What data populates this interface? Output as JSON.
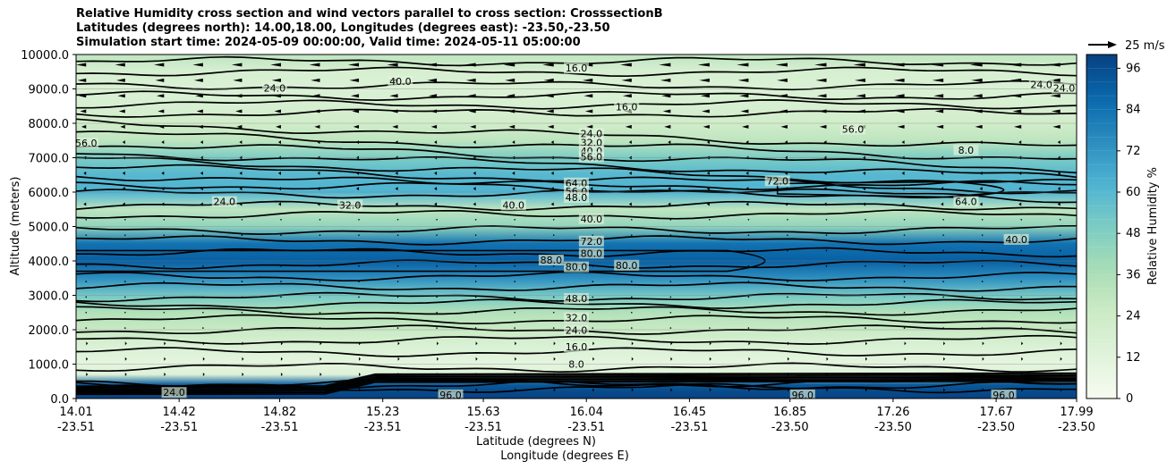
{
  "chart_data": {
    "type": "contour",
    "title_lines": [
      "Relative Humidity cross section and wind vectors parallel to cross section: CrosssectionB",
      "Latitudes (degrees north): 14.00,18.00, Longitudes (degrees east): -23.50,-23.50",
      "Simulation start time: 2024-05-09 00:00:00, Valid time: 2024-05-11 05:00:00"
    ],
    "ylabel": "Altitude (meters)",
    "xlabel_lat": "Latitude (degrees N)",
    "xlabel_lon": "Longitude (degrees E)",
    "ylim": [
      0,
      10000
    ],
    "yticks": [
      "0.0",
      "1000.0",
      "2000.0",
      "3000.0",
      "4000.0",
      "5000.0",
      "6000.0",
      "7000.0",
      "8000.0",
      "9000.0",
      "10000.0"
    ],
    "xticks": [
      {
        "lat": "14.01",
        "lon": "-23.51"
      },
      {
        "lat": "14.42",
        "lon": "-23.51"
      },
      {
        "lat": "14.82",
        "lon": "-23.51"
      },
      {
        "lat": "15.23",
        "lon": "-23.51"
      },
      {
        "lat": "15.63",
        "lon": "-23.51"
      },
      {
        "lat": "16.04",
        "lon": "-23.51"
      },
      {
        "lat": "16.45",
        "lon": "-23.51"
      },
      {
        "lat": "16.85",
        "lon": "-23.50"
      },
      {
        "lat": "17.26",
        "lon": "-23.50"
      },
      {
        "lat": "17.67",
        "lon": "-23.50"
      },
      {
        "lat": "17.99",
        "lon": "-23.50"
      }
    ],
    "colorbar": {
      "label": "Relative Humidity %",
      "ticks": [
        "0",
        "12",
        "24",
        "36",
        "48",
        "60",
        "72",
        "84",
        "96"
      ],
      "range": [
        0,
        100
      ],
      "colormap": [
        "#f7fcf0",
        "#e0f3db",
        "#ccebc5",
        "#a8ddb5",
        "#7bccc4",
        "#4eb3d3",
        "#2b8cbe",
        "#0868ac",
        "#084081"
      ]
    },
    "quiver_key": "25 m/s",
    "rh_profile": [
      {
        "alt": 0,
        "rh": 99
      },
      {
        "alt": 200,
        "rh": 97
      },
      {
        "alt": 400,
        "rh": 92
      },
      {
        "alt": 700,
        "rh": 14
      },
      {
        "alt": 1000,
        "rh": 10
      },
      {
        "alt": 1500,
        "rh": 16
      },
      {
        "alt": 2000,
        "rh": 26
      },
      {
        "alt": 2500,
        "rh": 34
      },
      {
        "alt": 3000,
        "rh": 52
      },
      {
        "alt": 3500,
        "rh": 74
      },
      {
        "alt": 4000,
        "rh": 90
      },
      {
        "alt": 4500,
        "rh": 84
      },
      {
        "alt": 5000,
        "rh": 44
      },
      {
        "alt": 5500,
        "rh": 30
      },
      {
        "alt": 6000,
        "rh": 62
      },
      {
        "alt": 6500,
        "rh": 60
      },
      {
        "alt": 7000,
        "rh": 50
      },
      {
        "alt": 7500,
        "rh": 30
      },
      {
        "alt": 8000,
        "rh": 22
      },
      {
        "alt": 8500,
        "rh": 18
      },
      {
        "alt": 9000,
        "rh": 16
      },
      {
        "alt": 9500,
        "rh": 18
      },
      {
        "alt": 10000,
        "rh": 30
      }
    ],
    "contour_labels": [
      {
        "text": "16.0",
        "lat": 16.0,
        "alt": 9580
      },
      {
        "text": "16.0",
        "lat": 16.2,
        "alt": 8450
      },
      {
        "text": "24.0",
        "lat": 16.06,
        "alt": 7680
      },
      {
        "text": "32.0",
        "lat": 16.06,
        "alt": 7420
      },
      {
        "text": "40.0",
        "lat": 16.06,
        "alt": 7170
      },
      {
        "text": "56.0",
        "lat": 16.06,
        "alt": 7000
      },
      {
        "text": "64.0",
        "lat": 16.0,
        "alt": 6240
      },
      {
        "text": "56.0",
        "lat": 16.0,
        "alt": 6000
      },
      {
        "text": "48.0",
        "lat": 16.0,
        "alt": 5820
      },
      {
        "text": "40.0",
        "lat": 16.06,
        "alt": 5200
      },
      {
        "text": "72.0",
        "lat": 16.06,
        "alt": 4550
      },
      {
        "text": "80.0",
        "lat": 16.06,
        "alt": 4200
      },
      {
        "text": "80.0",
        "lat": 16.0,
        "alt": 3800
      },
      {
        "text": "80.0",
        "lat": 16.2,
        "alt": 3850
      },
      {
        "text": "48.0",
        "lat": 16.0,
        "alt": 2880
      },
      {
        "text": "32.0",
        "lat": 16.0,
        "alt": 2320
      },
      {
        "text": "24.0",
        "lat": 16.0,
        "alt": 1960
      },
      {
        "text": "16.0",
        "lat": 16.0,
        "alt": 1480
      },
      {
        "text": "8.0",
        "lat": 16.0,
        "alt": 980
      },
      {
        "text": "24.0",
        "lat": 14.8,
        "alt": 9000
      },
      {
        "text": "40.0",
        "lat": 15.3,
        "alt": 9200
      },
      {
        "text": "24.0",
        "lat": 14.6,
        "alt": 5700
      },
      {
        "text": "32.0",
        "lat": 15.1,
        "alt": 5600
      },
      {
        "text": "40.0",
        "lat": 15.75,
        "alt": 5600
      },
      {
        "text": "56.0",
        "lat": 14.05,
        "alt": 7400
      },
      {
        "text": "72.0",
        "lat": 16.8,
        "alt": 6300
      },
      {
        "text": "56.0",
        "lat": 17.1,
        "alt": 7800
      },
      {
        "text": "8.0",
        "lat": 17.55,
        "alt": 7200
      },
      {
        "text": "64.0",
        "lat": 17.55,
        "alt": 5700
      },
      {
        "text": "40.0",
        "lat": 17.75,
        "alt": 4600
      },
      {
        "text": "24.0",
        "lat": 17.85,
        "alt": 9100
      },
      {
        "text": "24.0",
        "lat": 17.94,
        "alt": 9000
      },
      {
        "text": "88.0",
        "lat": 15.9,
        "alt": 4000
      },
      {
        "text": "24.0",
        "lat": 14.4,
        "alt": 150
      },
      {
        "text": "96.0",
        "lat": 15.5,
        "alt": 80
      },
      {
        "text": "96.0",
        "lat": 16.9,
        "alt": 80
      },
      {
        "text": "96.0",
        "lat": 17.7,
        "alt": 80
      }
    ]
  }
}
